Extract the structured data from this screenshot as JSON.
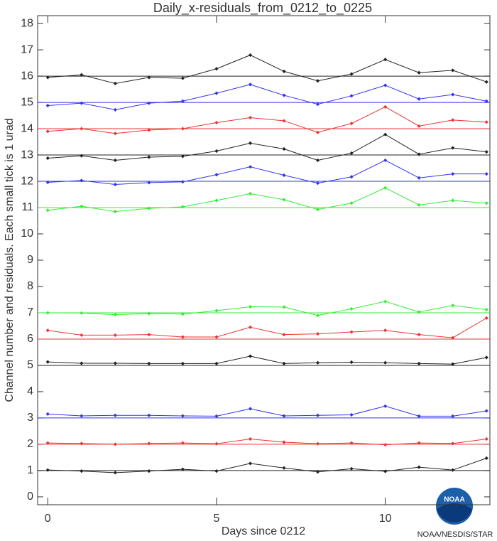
{
  "chart_data": {
    "type": "line",
    "title": "Daily_x-residuals_from_0212_to_0225",
    "x_label": "Days since 0212",
    "y_label": "Channel number and residuals. Each small tick is 1 urad",
    "x": [
      0,
      1,
      2,
      3,
      4,
      5,
      6,
      7,
      8,
      9,
      10,
      11,
      12,
      13
    ],
    "xlim": [
      -0.3,
      13.1
    ],
    "xticks": [
      0,
      5,
      10
    ],
    "ylim": [
      -0.3,
      18.3
    ],
    "yticks": [
      0,
      1,
      2,
      3,
      4,
      5,
      6,
      7,
      8,
      9,
      10,
      11,
      12,
      13,
      14,
      15,
      16,
      17,
      18
    ],
    "series": [
      {
        "color": "#222222",
        "baseline": 16,
        "values": [
          15.95,
          16.05,
          15.72,
          15.95,
          15.92,
          16.28,
          16.8,
          16.18,
          15.82,
          16.08,
          16.63,
          16.13,
          16.22,
          15.78
        ]
      },
      {
        "color": "#3333ee",
        "baseline": 15,
        "values": [
          14.88,
          14.97,
          14.72,
          14.97,
          15.05,
          15.35,
          15.68,
          15.27,
          14.93,
          15.25,
          15.65,
          15.13,
          15.3,
          15.05
        ]
      },
      {
        "color": "#ee3333",
        "baseline": 14,
        "values": [
          13.9,
          14.0,
          13.82,
          13.95,
          14.0,
          14.23,
          14.42,
          14.3,
          13.86,
          14.2,
          14.83,
          14.1,
          14.33,
          14.25
        ]
      },
      {
        "color": "#222222",
        "baseline": 13,
        "values": [
          12.88,
          12.97,
          12.8,
          12.92,
          12.95,
          13.15,
          13.45,
          13.23,
          12.8,
          13.07,
          13.78,
          13.03,
          13.27,
          13.12
        ]
      },
      {
        "color": "#3333ee",
        "baseline": 12,
        "values": [
          11.96,
          12.03,
          11.88,
          11.95,
          11.98,
          12.25,
          12.55,
          12.23,
          11.93,
          12.17,
          12.8,
          12.13,
          12.28,
          12.28
        ]
      },
      {
        "color": "#33ee33",
        "baseline": 11,
        "values": [
          10.9,
          11.05,
          10.85,
          10.97,
          11.03,
          11.27,
          11.53,
          11.3,
          10.93,
          11.17,
          11.75,
          11.1,
          11.27,
          11.17
        ]
      },
      {
        "color": "#33ee33",
        "baseline": 7,
        "values": [
          7.0,
          6.99,
          6.93,
          6.97,
          6.95,
          7.08,
          7.23,
          7.22,
          6.9,
          7.15,
          7.43,
          7.03,
          7.28,
          7.12
        ]
      },
      {
        "color": "#ee3333",
        "baseline": 6,
        "values": [
          6.33,
          6.15,
          6.15,
          6.17,
          6.08,
          6.08,
          6.45,
          6.17,
          6.2,
          6.27,
          6.33,
          6.17,
          6.05,
          6.8
        ]
      },
      {
        "color": "#222222",
        "baseline": 5,
        "values": [
          5.13,
          5.08,
          5.08,
          5.07,
          5.07,
          5.07,
          5.35,
          5.07,
          5.1,
          5.12,
          5.1,
          5.07,
          5.05,
          5.3
        ]
      },
      {
        "color": "#3333ee",
        "baseline": 3,
        "values": [
          3.15,
          3.08,
          3.1,
          3.1,
          3.08,
          3.07,
          3.35,
          3.08,
          3.1,
          3.12,
          3.45,
          3.07,
          3.07,
          3.27
        ]
      },
      {
        "color": "#ee3333",
        "baseline": 2,
        "values": [
          2.05,
          2.03,
          2.0,
          2.03,
          2.05,
          2.02,
          2.2,
          2.08,
          2.02,
          2.05,
          1.98,
          2.05,
          2.03,
          2.2
        ]
      },
      {
        "color": "#222222",
        "baseline": 1,
        "values": [
          1.02,
          0.98,
          0.92,
          0.98,
          1.05,
          0.98,
          1.27,
          1.1,
          0.95,
          1.07,
          0.97,
          1.13,
          1.02,
          1.47
        ]
      }
    ]
  },
  "logo": {
    "text": "NOAA",
    "caption": "NOAA/NESDIS/STAR"
  }
}
